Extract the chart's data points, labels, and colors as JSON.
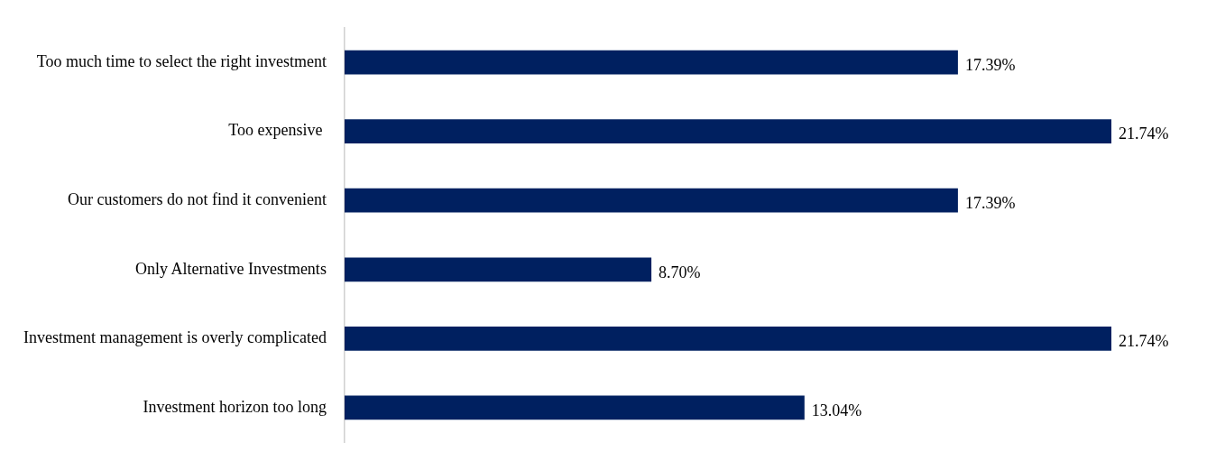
{
  "chart_data": {
    "type": "bar",
    "orientation": "horizontal",
    "categories": [
      "Too much time to select the right investment",
      "Too expensive ",
      "Our customers do not find it convenient",
      "Only Alternative Investments",
      "Investment management is overly complicated",
      "Investment horizon too long"
    ],
    "values": [
      17.39,
      21.74,
      17.39,
      8.7,
      21.74,
      13.04
    ],
    "value_labels": [
      "17.39%",
      "21.74%",
      "17.39%",
      "8.70%",
      "21.74%",
      "13.04%"
    ],
    "color": "#002060",
    "xlim": [
      0,
      21.74
    ],
    "tick_labels": "y"
  }
}
